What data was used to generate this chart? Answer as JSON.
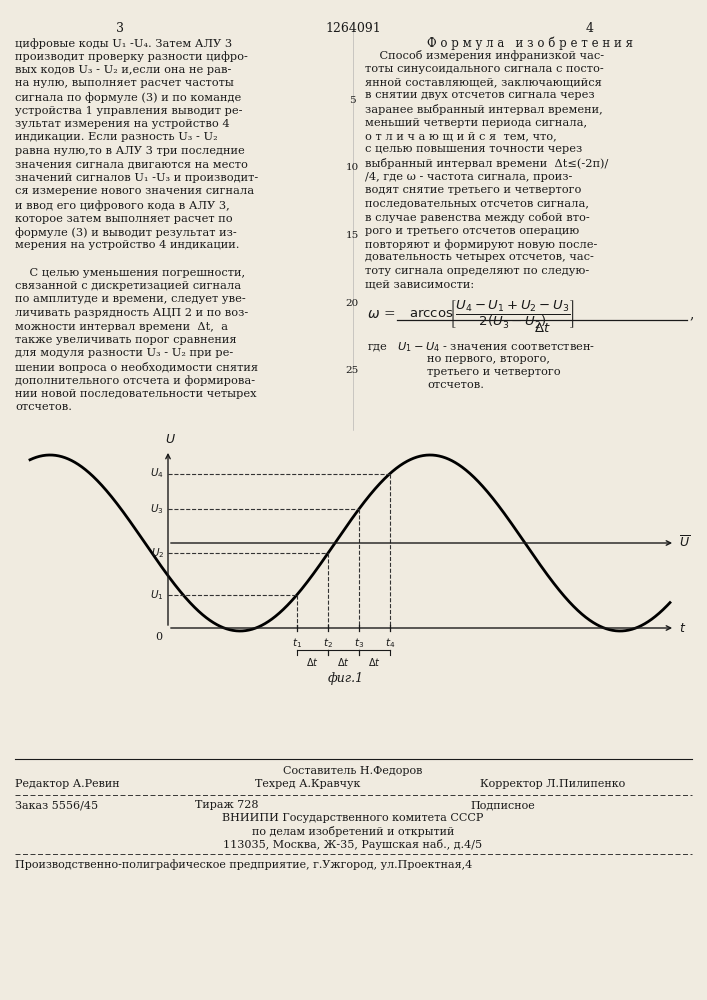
{
  "page_number_left": "3",
  "page_number_center": "1264091",
  "page_number_right": "4",
  "col_left_text": [
    "цифровые коды U₁ -U₄. Затем АЛУ 3",
    "производит проверку разности цифро-",
    "вых кодов U₃ - U₂ и,если она не рав-",
    "на нулю, выполняет расчет частоты",
    "сигнала по формуле (3) и по команде",
    "устройства 1 управления выводит ре-",
    "зультат измерения на устройство 4",
    "индикации. Если разность U₃ - U₂",
    "равна нулю,то в АЛУ 3 три последние",
    "значения сигнала двигаются на место",
    "значений сигналов U₁ -U₃ и производит-",
    "ся измерение нового значения сигнала",
    "и ввод его цифрового кода в АЛУ 3,",
    "которое затем выполняет расчет по",
    "формуле (3) и выводит результат из-",
    "мерения на устройство 4 индикации.",
    "",
    "    С целью уменьшения погрешности,",
    "связанной с дискретизацией сигнала",
    "по амплитуде и времени, следует уве-",
    "личивать разрядность АЦП 2 и по воз-",
    "можности интервал времени  Δt,  а",
    "также увеличивать порог сравнения",
    "для модуля разности U₃ - U₂ при ре-",
    "шении вопроса о необходимости снятия",
    "дополнительного отсчета и формирова-",
    "нии новой последовательности четырех",
    "отсчетов."
  ],
  "formula_title": "Ф о р м у л а   и з о б р е т е н и я",
  "col_right_text": [
    "    Способ измерения инфранизкой час-",
    "тоты синусоидального сигнала с посто-",
    "янной составляющей, заключающийся",
    "в снятии двух отсчетов сигнала через",
    "заранее выбранный интервал времени,",
    "меньший четверти периода сигнала,",
    "о т л и ч а ю щ и й с я  тем, что,",
    "с целью повышения точности через",
    "выбранный интервал времени  Δt≤(-2π)/",
    "/4, где ω - частота сигнала, произ-",
    "водят снятие третьего и четвертого",
    "последовательных отсчетов сигнала,",
    "в случае равенства между собой вто-",
    "рого и третьего отсчетов операцию",
    "повторяют и формируют новую после-",
    "довательность четырех отсчетов, час-",
    "тоту сигнала определяют по следую-",
    "щей зависимости:"
  ],
  "fig_caption": "фиг.1",
  "footer_composer": "Составитель Н.Федоров",
  "footer_editor": "Редактор А.Ревин",
  "footer_techred": "Техред А.Кравчук",
  "footer_corrector": "Корректор Л.Пилипенко",
  "footer_order": "Заказ 5556/45",
  "footer_tiraz": "Тираж 728",
  "footer_podpisnoe": "Подписное",
  "footer_vniiipi": "ВНИИПИ Государственного комитета СССР",
  "footer_po_delam": "по делам изобретений и открытий",
  "footer_address": "113035, Москва, Ж-35, Раушская наб., д.4/5",
  "footer_proizv": "Производственно-полиграфическое предприятие, г.Ужгород, ул.Проектная,4",
  "bg_color": "#f0ebe0",
  "text_color": "#1a1a1a",
  "sine_color": "#000000",
  "dashed_color": "#333333"
}
